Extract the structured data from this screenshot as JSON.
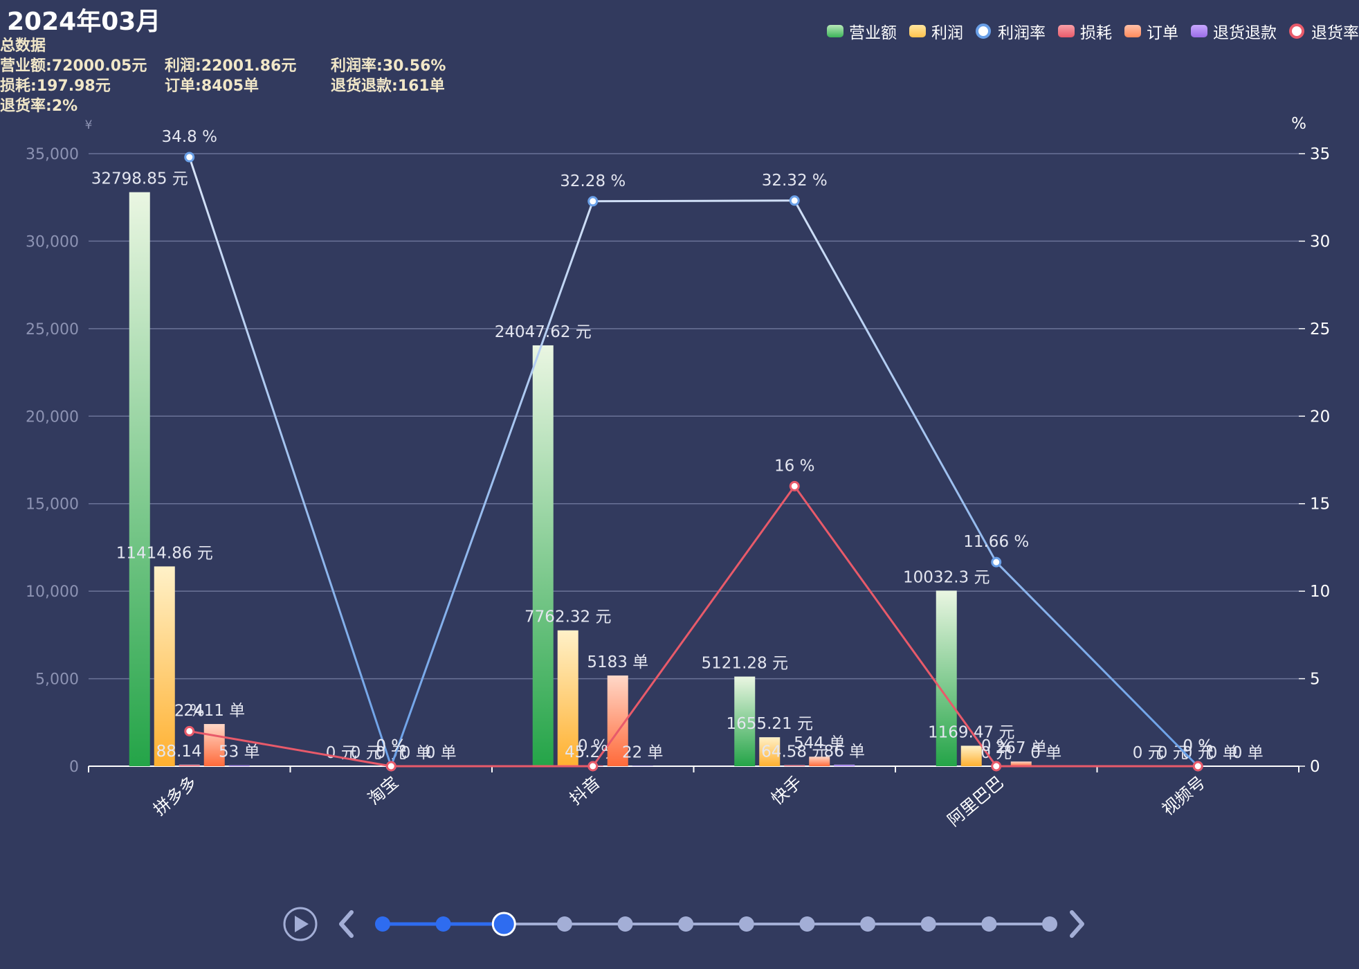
{
  "title": "2024年03月",
  "summary": {
    "heading": "总数据",
    "items": [
      {
        "label": "营业额:",
        "value": "72000.05元"
      },
      {
        "label": "利润:",
        "value": "22001.86元"
      },
      {
        "label": "利润率:",
        "value": "30.56%"
      },
      {
        "label": "损耗:",
        "value": "197.98元"
      },
      {
        "label": "订单:",
        "value": "8405单"
      },
      {
        "label": "退货退款:",
        "value": "161单"
      },
      {
        "label": "退货率:",
        "value": "2%"
      }
    ]
  },
  "legend": [
    {
      "name": "营业额",
      "kind": "bar",
      "color": "#3cb45a"
    },
    {
      "name": "利润",
      "kind": "bar",
      "color": "#ffc24d"
    },
    {
      "name": "利润率",
      "kind": "line",
      "color": "#6aa0e8"
    },
    {
      "name": "损耗",
      "kind": "bar",
      "color": "#e85a6a"
    },
    {
      "name": "订单",
      "kind": "bar",
      "color": "#ff8a5c"
    },
    {
      "name": "退货退款",
      "kind": "bar",
      "color": "#9a6ce8"
    },
    {
      "name": "退货率",
      "kind": "line",
      "color": "#e85a6a"
    }
  ],
  "chart_data": {
    "type": "bar",
    "categories": [
      "拼多多",
      "淘宝",
      "抖音",
      "快手",
      "阿里巴巴",
      "视频号"
    ],
    "left_axis": {
      "unit": "¥",
      "min": 0,
      "max": 35000,
      "ticks": [
        "0",
        "5,000",
        "10,000",
        "15,000",
        "20,000",
        "25,000",
        "30,000",
        "35,000"
      ]
    },
    "right_axis": {
      "unit": "%",
      "min": 0,
      "max": 35,
      "ticks": [
        "0",
        "5",
        "10",
        "15",
        "20",
        "25",
        "30",
        "35"
      ]
    },
    "series": [
      {
        "name": "营业额",
        "type": "bar",
        "axis": "left",
        "values": [
          32798.85,
          0,
          24047.62,
          5121.28,
          10032.3,
          0
        ],
        "labels": [
          "32798.85 元",
          "0 元",
          "24047.62 元",
          "5121.28 元",
          "10032.3 元",
          "0 元"
        ],
        "color_top": "#eaf6e2",
        "color_bottom": "#24a448"
      },
      {
        "name": "利润",
        "type": "bar",
        "axis": "left",
        "values": [
          11414.86,
          0,
          7762.32,
          1655.21,
          1169.47,
          0
        ],
        "labels": [
          "11414.86 元",
          "0 元",
          "7762.32 元",
          "1655.21 元",
          "1169.47 元",
          "0 元"
        ],
        "color_top": "#fff1c8",
        "color_bottom": "#ffb030"
      },
      {
        "name": "损耗",
        "type": "bar",
        "axis": "left",
        "values": [
          88.14,
          0,
          45.2,
          64.58,
          0,
          0
        ],
        "labels": [
          "88.14 元",
          "0 元",
          "45.2 元",
          "64.58 元",
          "0 元",
          "0 元"
        ],
        "color_top": "#f8c0c8",
        "color_bottom": "#e2485a"
      },
      {
        "name": "订单",
        "type": "bar",
        "axis": "left",
        "values": [
          2411,
          0,
          5183,
          544,
          267,
          0
        ],
        "labels": [
          "2411 单",
          "0 单",
          "5183 单",
          "544 单",
          "267 单",
          "0 单"
        ],
        "color_top": "#ffd8c8",
        "color_bottom": "#ff6a3a"
      },
      {
        "name": "退货退款",
        "type": "bar",
        "axis": "left",
        "values": [
          53,
          0,
          22,
          86,
          0,
          0
        ],
        "labels": [
          "53 单",
          "0 单",
          "22 单",
          "86 单",
          "0 单",
          "0 单"
        ],
        "color_top": "#d8c8ff",
        "color_bottom": "#8a5ce8"
      },
      {
        "name": "利润率",
        "type": "line",
        "axis": "right",
        "values": [
          34.8,
          0,
          32.28,
          32.32,
          11.66,
          0
        ],
        "labels": [
          "34.8 %",
          "0 %",
          "32.28 %",
          "32.32 %",
          "11.66 %",
          "0 %"
        ],
        "color": "#6aa0e8"
      },
      {
        "name": "退货率",
        "type": "line",
        "axis": "right",
        "values": [
          2,
          0,
          0,
          16,
          0,
          0
        ],
        "labels": [
          "2 %",
          "0 %",
          "0 %",
          "16 %",
          "0 %",
          "0 %"
        ],
        "color": "#e85a6a"
      }
    ]
  },
  "timeline": {
    "points": 12,
    "current_index": 2,
    "active_color": "#2e6cf0",
    "inactive_color": "#a3aed6"
  }
}
